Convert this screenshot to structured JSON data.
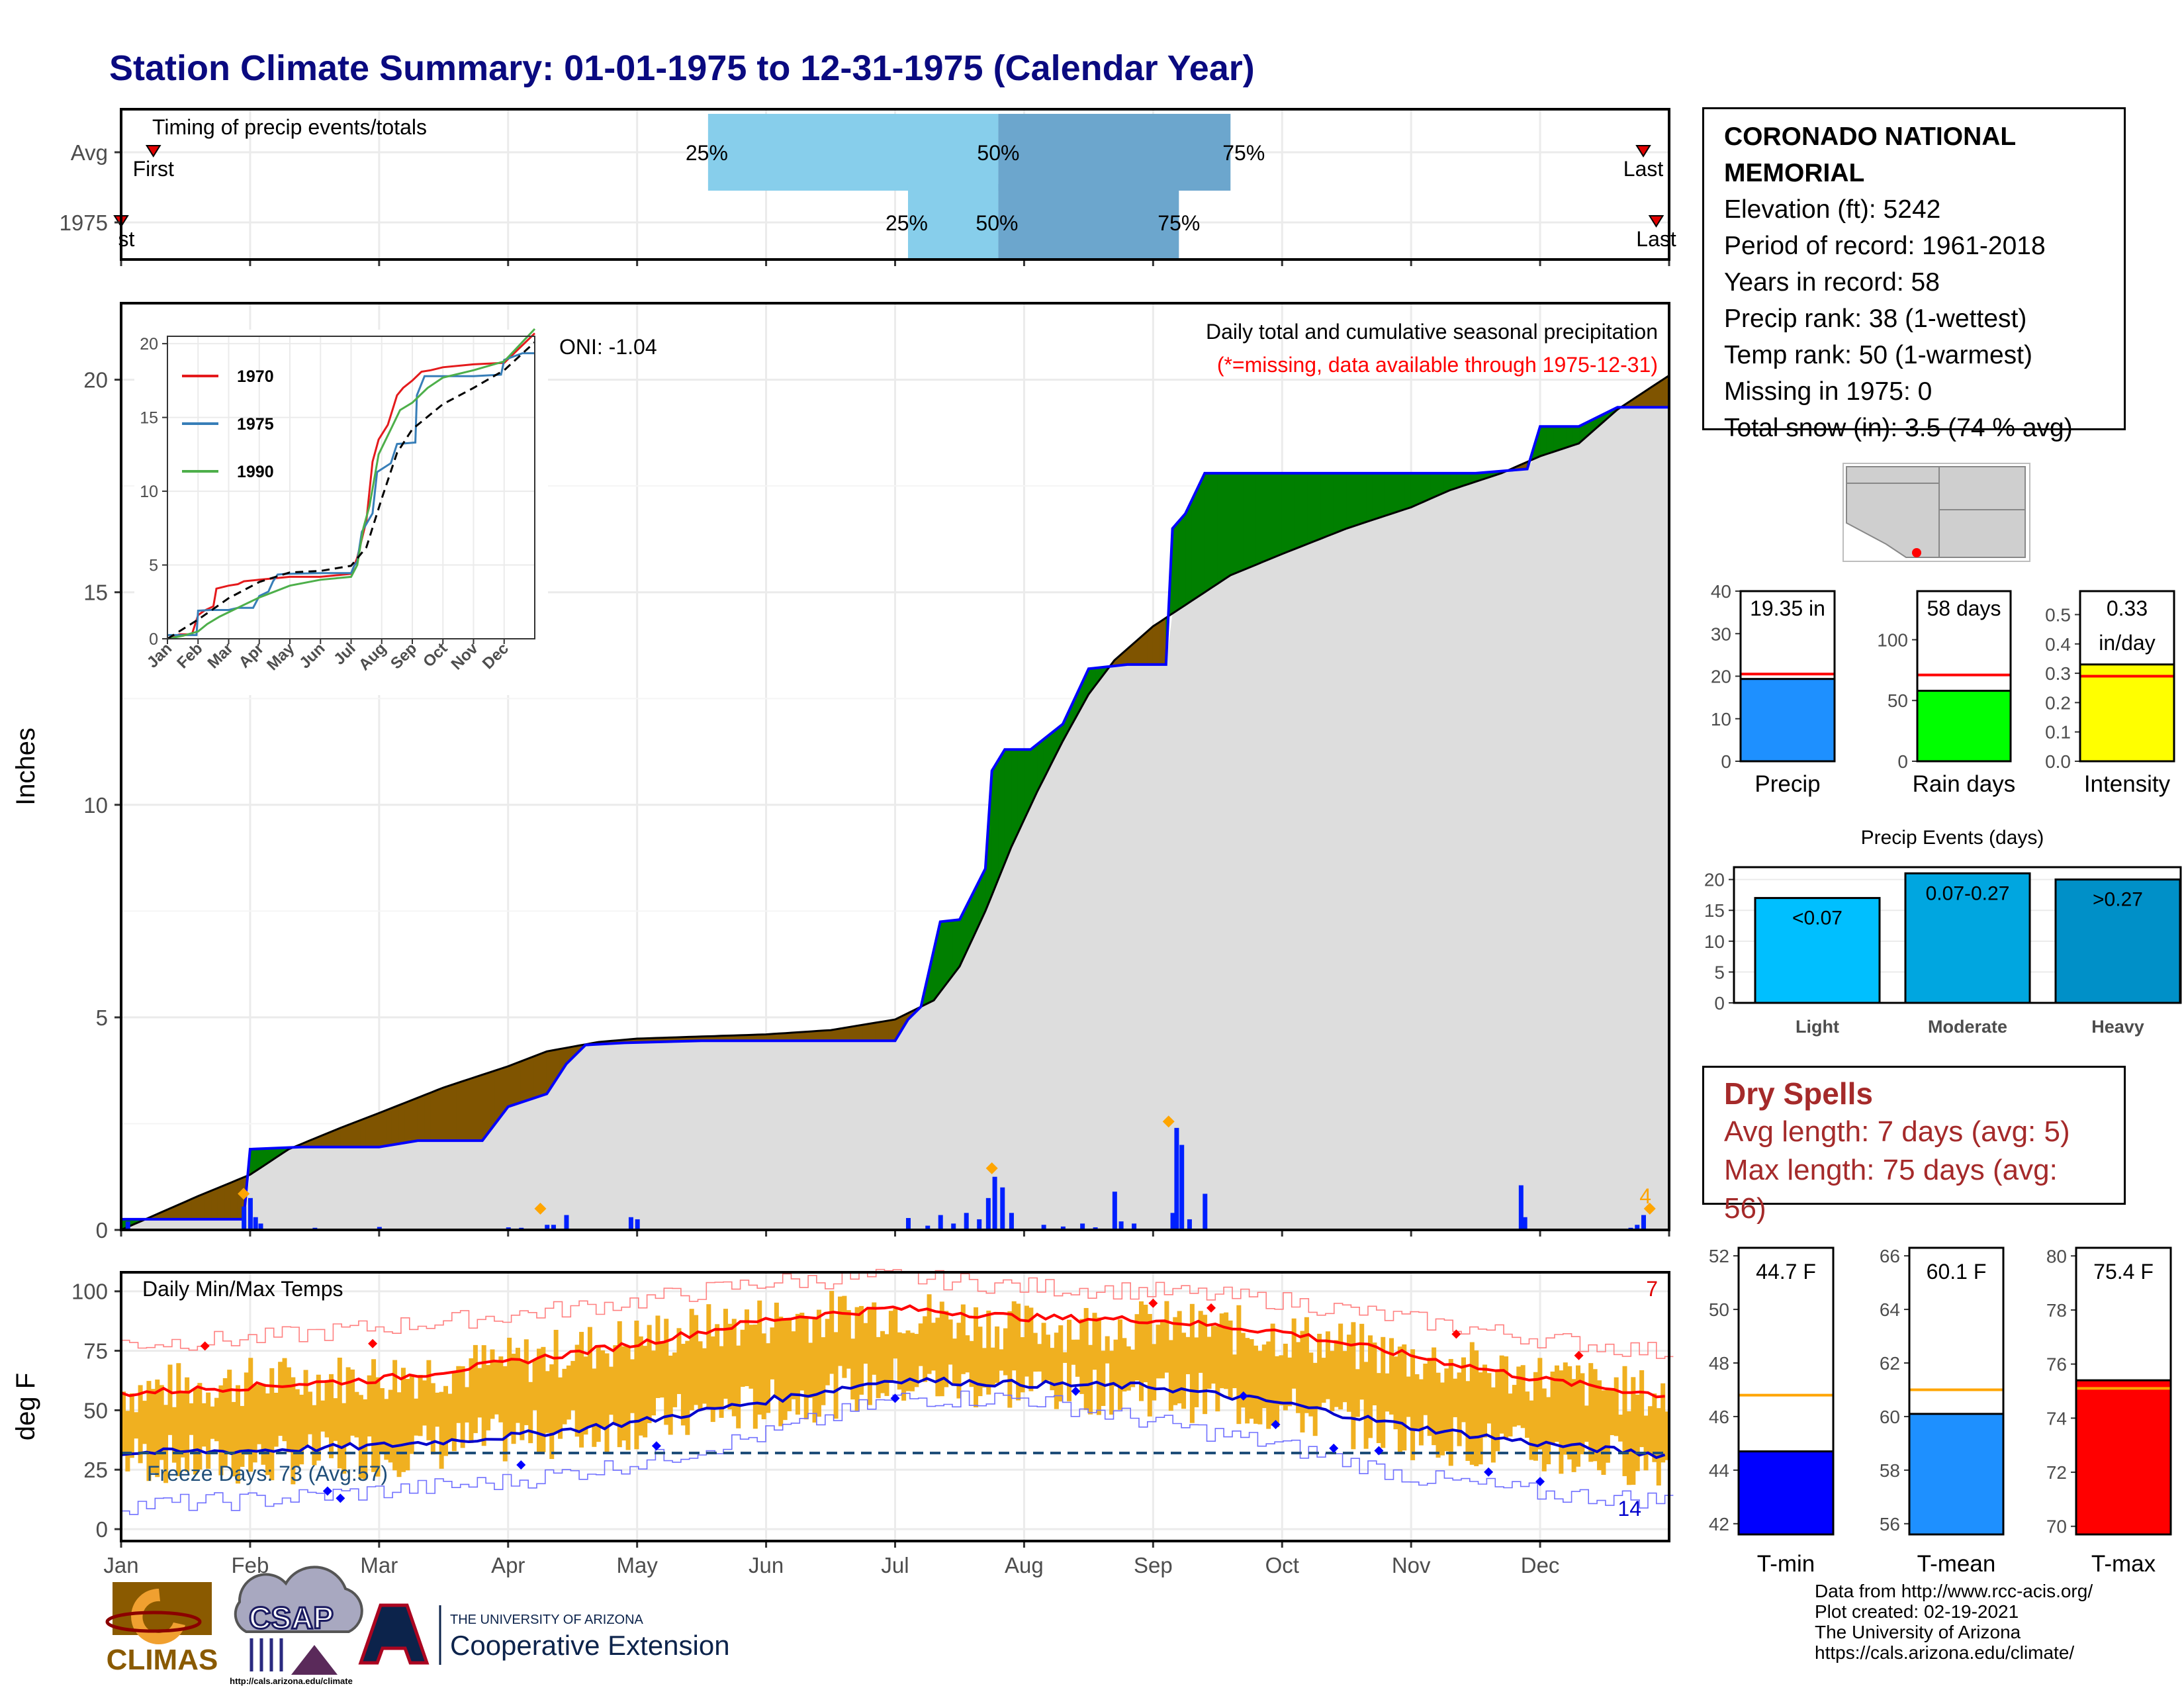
{
  "page": {
    "title": "Station Climate Summary: 01-01-1975 to 12-31-1975 (Calendar Year)"
  },
  "station": {
    "name_line1": "CORONADO NATIONAL",
    "name_line2": "MEMORIAL",
    "elevation": "Elevation (ft): 5242",
    "period": "Period of record: 1961-2018",
    "years": "Years in record: 58",
    "precip_rank": "Precip rank: 38 (1-wettest)",
    "temp_rank": "Temp rank: 50 (1-warmest)",
    "missing": "Missing in 1975: 0",
    "snow": "Total snow (in): 3.5 (74 % avg)"
  },
  "dry_spells": {
    "title": "Dry Spells",
    "avg_length": "Avg length: 7 days (avg: 5)",
    "max_length": "Max length: 75 days (avg: 56)"
  },
  "credits": {
    "line1": "Data from http://www.rcc-acis.org/",
    "line2": "Plot created: 02-19-2021",
    "line3": "The University of Arizona",
    "line4": "https://cals.arizona.edu/climate/"
  },
  "logos": {
    "climas": "CLIMAS",
    "csap": "CSAP",
    "csap_url": "http://cals.arizona.edu/climate",
    "ua_small": "THE UNIVERSITY OF ARIZONA",
    "ua_big": "Cooperative Extension"
  },
  "colors": {
    "title": "#0a0a80",
    "normal_fill": "#dddddd",
    "deficit": "#7f5400",
    "surplus": "#007f00",
    "cumulative_line": "#0000ff",
    "temp_bar": "#f0b020",
    "tmax_norm": "#ff0000",
    "tmin_norm": "#0000cc"
  },
  "chart_data": [
    {
      "id": "timing",
      "type": "bar",
      "title": "Timing of precip events/totals",
      "categories": [
        "Avg",
        "1975"
      ],
      "quantile_labels": [
        "25%",
        "50%",
        "75%"
      ],
      "first_label": "First",
      "last_label": "Last",
      "first_label_1975": "st",
      "avg": {
        "first": 0.25,
        "p25": 4.55,
        "p50": 6.8,
        "p75": 8.6,
        "last": 11.8
      },
      "y1975": {
        "first": 0.0,
        "p25": 6.1,
        "p50": 6.8,
        "p75": 8.2,
        "last": 11.9
      },
      "xlim": [
        0,
        12
      ]
    },
    {
      "id": "cumulative-precip",
      "type": "area",
      "title": "Daily total and cumulative seasonal precipitation",
      "subtitle": "(*=missing, data available through 1975-12-31)",
      "oni": "ONI: -1.04",
      "ylabel": "Inches",
      "ylim": [
        0,
        21.8
      ],
      "yticks": [
        0,
        5,
        10,
        15,
        20
      ],
      "xlim": [
        0,
        12
      ],
      "x_months": [
        "Jan",
        "Feb",
        "Mar",
        "Apr",
        "May",
        "Jun",
        "Jul",
        "Aug",
        "Sep",
        "Oct",
        "Nov",
        "Dec"
      ],
      "corner_count": "4",
      "normal_cumulative": {
        "x": [
          0,
          0.3,
          0.6,
          1.0,
          1.3,
          1.7,
          2.0,
          2.5,
          3.0,
          3.3,
          3.7,
          4.0,
          5.0,
          5.5,
          6.0,
          6.3,
          6.5,
          6.7,
          6.9,
          7.1,
          7.3,
          7.5,
          7.7,
          8.0,
          8.3,
          8.6,
          9.0,
          9.5,
          10.0,
          10.3,
          10.7,
          11.0,
          11.3,
          11.6,
          12.0
        ],
        "y": [
          0,
          0.4,
          0.8,
          1.3,
          1.9,
          2.4,
          2.75,
          3.35,
          3.85,
          4.2,
          4.42,
          4.5,
          4.6,
          4.7,
          4.95,
          5.4,
          6.2,
          7.5,
          9.0,
          10.3,
          11.5,
          12.6,
          13.4,
          14.2,
          14.8,
          15.4,
          15.9,
          16.5,
          17.0,
          17.4,
          17.8,
          18.2,
          18.5,
          19.3,
          20.1
        ]
      },
      "year_cumulative": {
        "x": [
          0,
          0.95,
          1.0,
          1.4,
          2.0,
          2.3,
          2.8,
          3.0,
          3.3,
          3.45,
          3.6,
          3.9,
          4.5,
          5.0,
          5.5,
          6.0,
          6.1,
          6.2,
          6.35,
          6.5,
          6.7,
          6.75,
          6.85,
          6.95,
          7.05,
          7.3,
          7.5,
          7.8,
          8.1,
          8.15,
          8.25,
          8.4,
          9.0,
          10.0,
          10.5,
          10.9,
          11.0,
          11.3,
          11.6,
          12.0
        ],
        "y": [
          0.25,
          0.25,
          1.9,
          1.95,
          1.95,
          2.1,
          2.1,
          2.9,
          3.2,
          3.9,
          4.35,
          4.4,
          4.45,
          4.45,
          4.45,
          4.45,
          4.95,
          5.25,
          7.25,
          7.3,
          8.5,
          10.8,
          11.3,
          11.3,
          11.3,
          11.9,
          13.2,
          13.3,
          13.3,
          16.5,
          16.85,
          17.8,
          17.8,
          17.8,
          17.8,
          17.9,
          18.9,
          18.9,
          19.35,
          19.35
        ]
      },
      "daily_precip": {
        "x": [
          0.05,
          0.95,
          1.0,
          1.04,
          1.08,
          1.5,
          2.0,
          2.2,
          3.0,
          3.1,
          3.3,
          3.35,
          3.45,
          3.95,
          4.0,
          6.1,
          6.25,
          6.35,
          6.45,
          6.55,
          6.65,
          6.72,
          6.77,
          6.83,
          6.9,
          7.15,
          7.3,
          7.45,
          7.55,
          7.7,
          7.75,
          7.85,
          8.15,
          8.18,
          8.22,
          8.28,
          8.4,
          10.85,
          10.88,
          11.7,
          11.75,
          11.8
        ],
        "y": [
          0.2,
          0.55,
          0.75,
          0.3,
          0.15,
          0.05,
          0.07,
          0.03,
          0.06,
          0.05,
          0.12,
          0.12,
          0.35,
          0.3,
          0.25,
          0.28,
          0.1,
          0.35,
          0.15,
          0.4,
          0.25,
          0.75,
          1.25,
          1.0,
          0.4,
          0.12,
          0.08,
          0.15,
          0.06,
          0.9,
          0.2,
          0.15,
          0.4,
          2.4,
          2.0,
          0.25,
          0.85,
          1.05,
          0.3,
          0.05,
          0.12,
          0.35
        ]
      },
      "big_event_markers": {
        "x": [
          0.95,
          3.25,
          6.75,
          8.12,
          11.85
        ],
        "y": [
          0.85,
          0.5,
          1.45,
          2.55,
          0.5
        ]
      }
    },
    {
      "id": "inset-cumulative",
      "type": "line",
      "legend": [
        "1970",
        "1975",
        "1990"
      ],
      "ylim": [
        0,
        20.5
      ],
      "yticks": [
        0,
        5,
        10,
        15,
        20
      ],
      "xlim": [
        0,
        12
      ],
      "x_months": [
        "Jan",
        "Feb",
        "Mar",
        "Apr",
        "May",
        "Jun",
        "Jul",
        "Aug",
        "Sep",
        "Oct",
        "Nov",
        "Dec"
      ],
      "series": [
        {
          "name": "1970",
          "color": "#e41a1c",
          "x": [
            0,
            0.4,
            0.8,
            1.0,
            1.2,
            1.5,
            1.6,
            2.0,
            2.3,
            2.5,
            3.0,
            4.0,
            5.0,
            6.0,
            6.2,
            6.5,
            6.7,
            6.9,
            7.2,
            7.5,
            7.7,
            8.0,
            8.3,
            8.6,
            9.0,
            10.0,
            11.0,
            12.0
          ],
          "y": [
            0,
            0.3,
            0.3,
            1.6,
            1.9,
            2.2,
            3.4,
            3.6,
            3.7,
            3.9,
            4.0,
            4.2,
            4.2,
            4.4,
            5.5,
            8.0,
            12.0,
            13.5,
            14.5,
            16.5,
            17.0,
            17.5,
            18.1,
            18.2,
            18.4,
            18.6,
            18.7,
            20.7
          ]
        },
        {
          "name": "1975",
          "color": "#377eb8",
          "x": [
            0,
            0.95,
            1.0,
            1.4,
            2.0,
            2.3,
            2.8,
            3.0,
            3.3,
            3.45,
            3.6,
            3.9,
            5.0,
            6.0,
            6.1,
            6.2,
            6.35,
            6.7,
            6.85,
            7.3,
            7.5,
            8.1,
            8.15,
            8.4,
            10.0,
            10.9,
            11.0,
            11.6,
            12.0
          ],
          "y": [
            0.25,
            0.25,
            1.9,
            1.95,
            1.95,
            2.1,
            2.1,
            2.9,
            3.2,
            3.9,
            4.35,
            4.4,
            4.45,
            4.45,
            4.95,
            5.25,
            7.25,
            8.5,
            11.3,
            11.9,
            13.2,
            13.3,
            16.5,
            17.8,
            17.8,
            17.9,
            18.9,
            19.35,
            19.35
          ]
        },
        {
          "name": "1990",
          "color": "#4daf4a",
          "x": [
            0,
            0.5,
            1.0,
            1.3,
            1.7,
            2.0,
            2.5,
            3.0,
            3.5,
            4.0,
            5.0,
            6.0,
            6.2,
            6.4,
            6.6,
            6.9,
            7.3,
            7.6,
            8.0,
            8.5,
            9.0,
            10.0,
            11.0,
            12.0
          ],
          "y": [
            0,
            0.2,
            0.5,
            1.0,
            1.5,
            1.8,
            2.3,
            2.8,
            3.2,
            3.6,
            4.0,
            4.2,
            5.0,
            7.5,
            9.0,
            12.5,
            14.2,
            15.5,
            16.0,
            17.0,
            17.7,
            18.2,
            18.8,
            21.0
          ]
        },
        {
          "name": "Normal",
          "color": "#000000",
          "x": [
            0,
            1.0,
            2.0,
            3.0,
            4.0,
            5.0,
            6.0,
            6.5,
            7.0,
            7.5,
            8.0,
            9.0,
            10.0,
            11.0,
            12.0
          ],
          "y": [
            0,
            1.3,
            2.75,
            3.85,
            4.5,
            4.6,
            4.95,
            6.2,
            9.5,
            12.6,
            14.2,
            15.9,
            17.0,
            18.2,
            20.1
          ]
        }
      ]
    },
    {
      "id": "daily-temps",
      "type": "bar",
      "title": "Daily Min/Max Temps",
      "ylabel": "deg F",
      "ylim": [
        -5,
        108
      ],
      "yticks": [
        0,
        25,
        50,
        75,
        100
      ],
      "xlim": [
        0,
        12
      ],
      "x_months": [
        "Jan",
        "Feb",
        "Mar",
        "Apr",
        "May",
        "Jun",
        "Jul",
        "Aug",
        "Sep",
        "Oct",
        "Nov",
        "Dec"
      ],
      "freeze_days": "Freeze Days: 73 (Avg:57)",
      "freeze_line": 32,
      "count_max": "7",
      "count_min": "14",
      "normal_max": {
        "x": [
          0,
          1,
          2,
          3,
          4,
          5,
          6,
          7,
          8,
          9,
          10,
          11,
          12
        ],
        "y": [
          57,
          60,
          63,
          70,
          78,
          88,
          93,
          89,
          88,
          83,
          73,
          63,
          56
        ]
      },
      "normal_min": {
        "x": [
          0,
          1,
          2,
          3,
          4,
          5,
          6,
          7,
          8,
          9,
          10,
          11,
          12
        ],
        "y": [
          32,
          33,
          35,
          39,
          45,
          54,
          63,
          61,
          60,
          53,
          43,
          36,
          31
        ]
      },
      "record_max": {
        "x": [
          0,
          1,
          2,
          3,
          4,
          5,
          6,
          7,
          8,
          9,
          10,
          11,
          12
        ],
        "y": [
          78,
          80,
          85,
          90,
          96,
          104,
          106,
          102,
          100,
          96,
          88,
          80,
          74
        ]
      },
      "record_min": {
        "x": [
          0,
          1,
          2,
          3,
          4,
          5,
          6,
          7,
          8,
          9,
          10,
          11,
          12
        ],
        "y": [
          10,
          12,
          16,
          20,
          28,
          40,
          55,
          55,
          45,
          35,
          22,
          15,
          12
        ]
      },
      "daily_max": {
        "x": [
          0,
          1,
          2,
          3,
          4,
          5,
          6,
          7,
          8,
          9,
          10,
          11,
          12
        ],
        "y": [
          58,
          62,
          64,
          70,
          80,
          88,
          92,
          85,
          86,
          82,
          72,
          64,
          55
        ]
      },
      "daily_min": {
        "x": [
          0,
          1,
          2,
          3,
          4,
          5,
          6,
          7,
          8,
          9,
          10,
          11,
          12
        ],
        "y": [
          30,
          28,
          32,
          38,
          44,
          52,
          62,
          60,
          58,
          50,
          40,
          32,
          28
        ]
      },
      "record_high_markers": {
        "x": [
          0.65,
          1.95,
          8.0,
          8.45,
          10.35,
          11.3
        ],
        "y": [
          77,
          78,
          95,
          93,
          82,
          73
        ]
      },
      "record_low_markers": {
        "x": [
          1.6,
          1.7,
          3.1,
          4.15,
          6.0,
          7.4,
          8.7,
          8.95,
          9.4,
          9.75,
          10.6,
          11.0
        ],
        "y": [
          16,
          13,
          27,
          35,
          55,
          58,
          56,
          44,
          34,
          33,
          24,
          20
        ]
      }
    },
    {
      "id": "annual-totals",
      "type": "bar",
      "panels": [
        {
          "label": "Precip",
          "value": 19.35,
          "value_label": "19.35 in",
          "normal": 20.5,
          "ylim": [
            0,
            40
          ],
          "yticks": [
            0,
            10,
            20,
            30,
            40
          ],
          "color": "#1e90ff"
        },
        {
          "label": "Rain days",
          "value": 58,
          "value_label": "58 days",
          "normal": 71,
          "ylim": [
            0,
            140
          ],
          "yticks": [
            0,
            50,
            100
          ],
          "color": "#00ff00"
        },
        {
          "label": "Intensity",
          "value": 0.33,
          "value_label": "0.33",
          "value_unit": "in/day",
          "normal": 0.29,
          "ylim": [
            0,
            0.58
          ],
          "yticks": [
            0.0,
            0.1,
            0.2,
            0.3,
            0.4,
            0.5
          ],
          "color": "#ffff00"
        }
      ]
    },
    {
      "id": "precip-events",
      "type": "bar",
      "title": "Precip Events (days)",
      "categories": [
        "Light",
        "Moderate",
        "Heavy"
      ],
      "values": [
        17,
        21,
        20
      ],
      "bar_labels": [
        "<0.07",
        "0.07-0.27",
        ">0.27"
      ],
      "colors": [
        "#00bfff",
        "#00a6e0",
        "#0090c8"
      ],
      "ylim": [
        0,
        22
      ],
      "yticks": [
        0,
        5,
        10,
        15,
        20
      ]
    },
    {
      "id": "annual-temps",
      "type": "bar",
      "panels": [
        {
          "label": "T-min",
          "value": 44.7,
          "value_label": "44.7 F",
          "normal": 46.8,
          "ylim": [
            41.6,
            52.3
          ],
          "yticks": [
            42,
            44,
            46,
            48,
            50,
            52
          ],
          "color": "#0000ff"
        },
        {
          "label": "T-mean",
          "value": 60.1,
          "value_label": "60.1 F",
          "normal": 61.0,
          "ylim": [
            55.6,
            66.3
          ],
          "yticks": [
            56,
            58,
            60,
            62,
            64,
            66
          ],
          "color": "#1e90ff"
        },
        {
          "label": "T-max",
          "value": 75.4,
          "value_label": "75.4 F",
          "normal": 75.1,
          "ylim": [
            69.7,
            80.3
          ],
          "yticks": [
            70,
            72,
            74,
            76,
            78,
            80
          ],
          "color": "#ff0000"
        }
      ]
    }
  ]
}
